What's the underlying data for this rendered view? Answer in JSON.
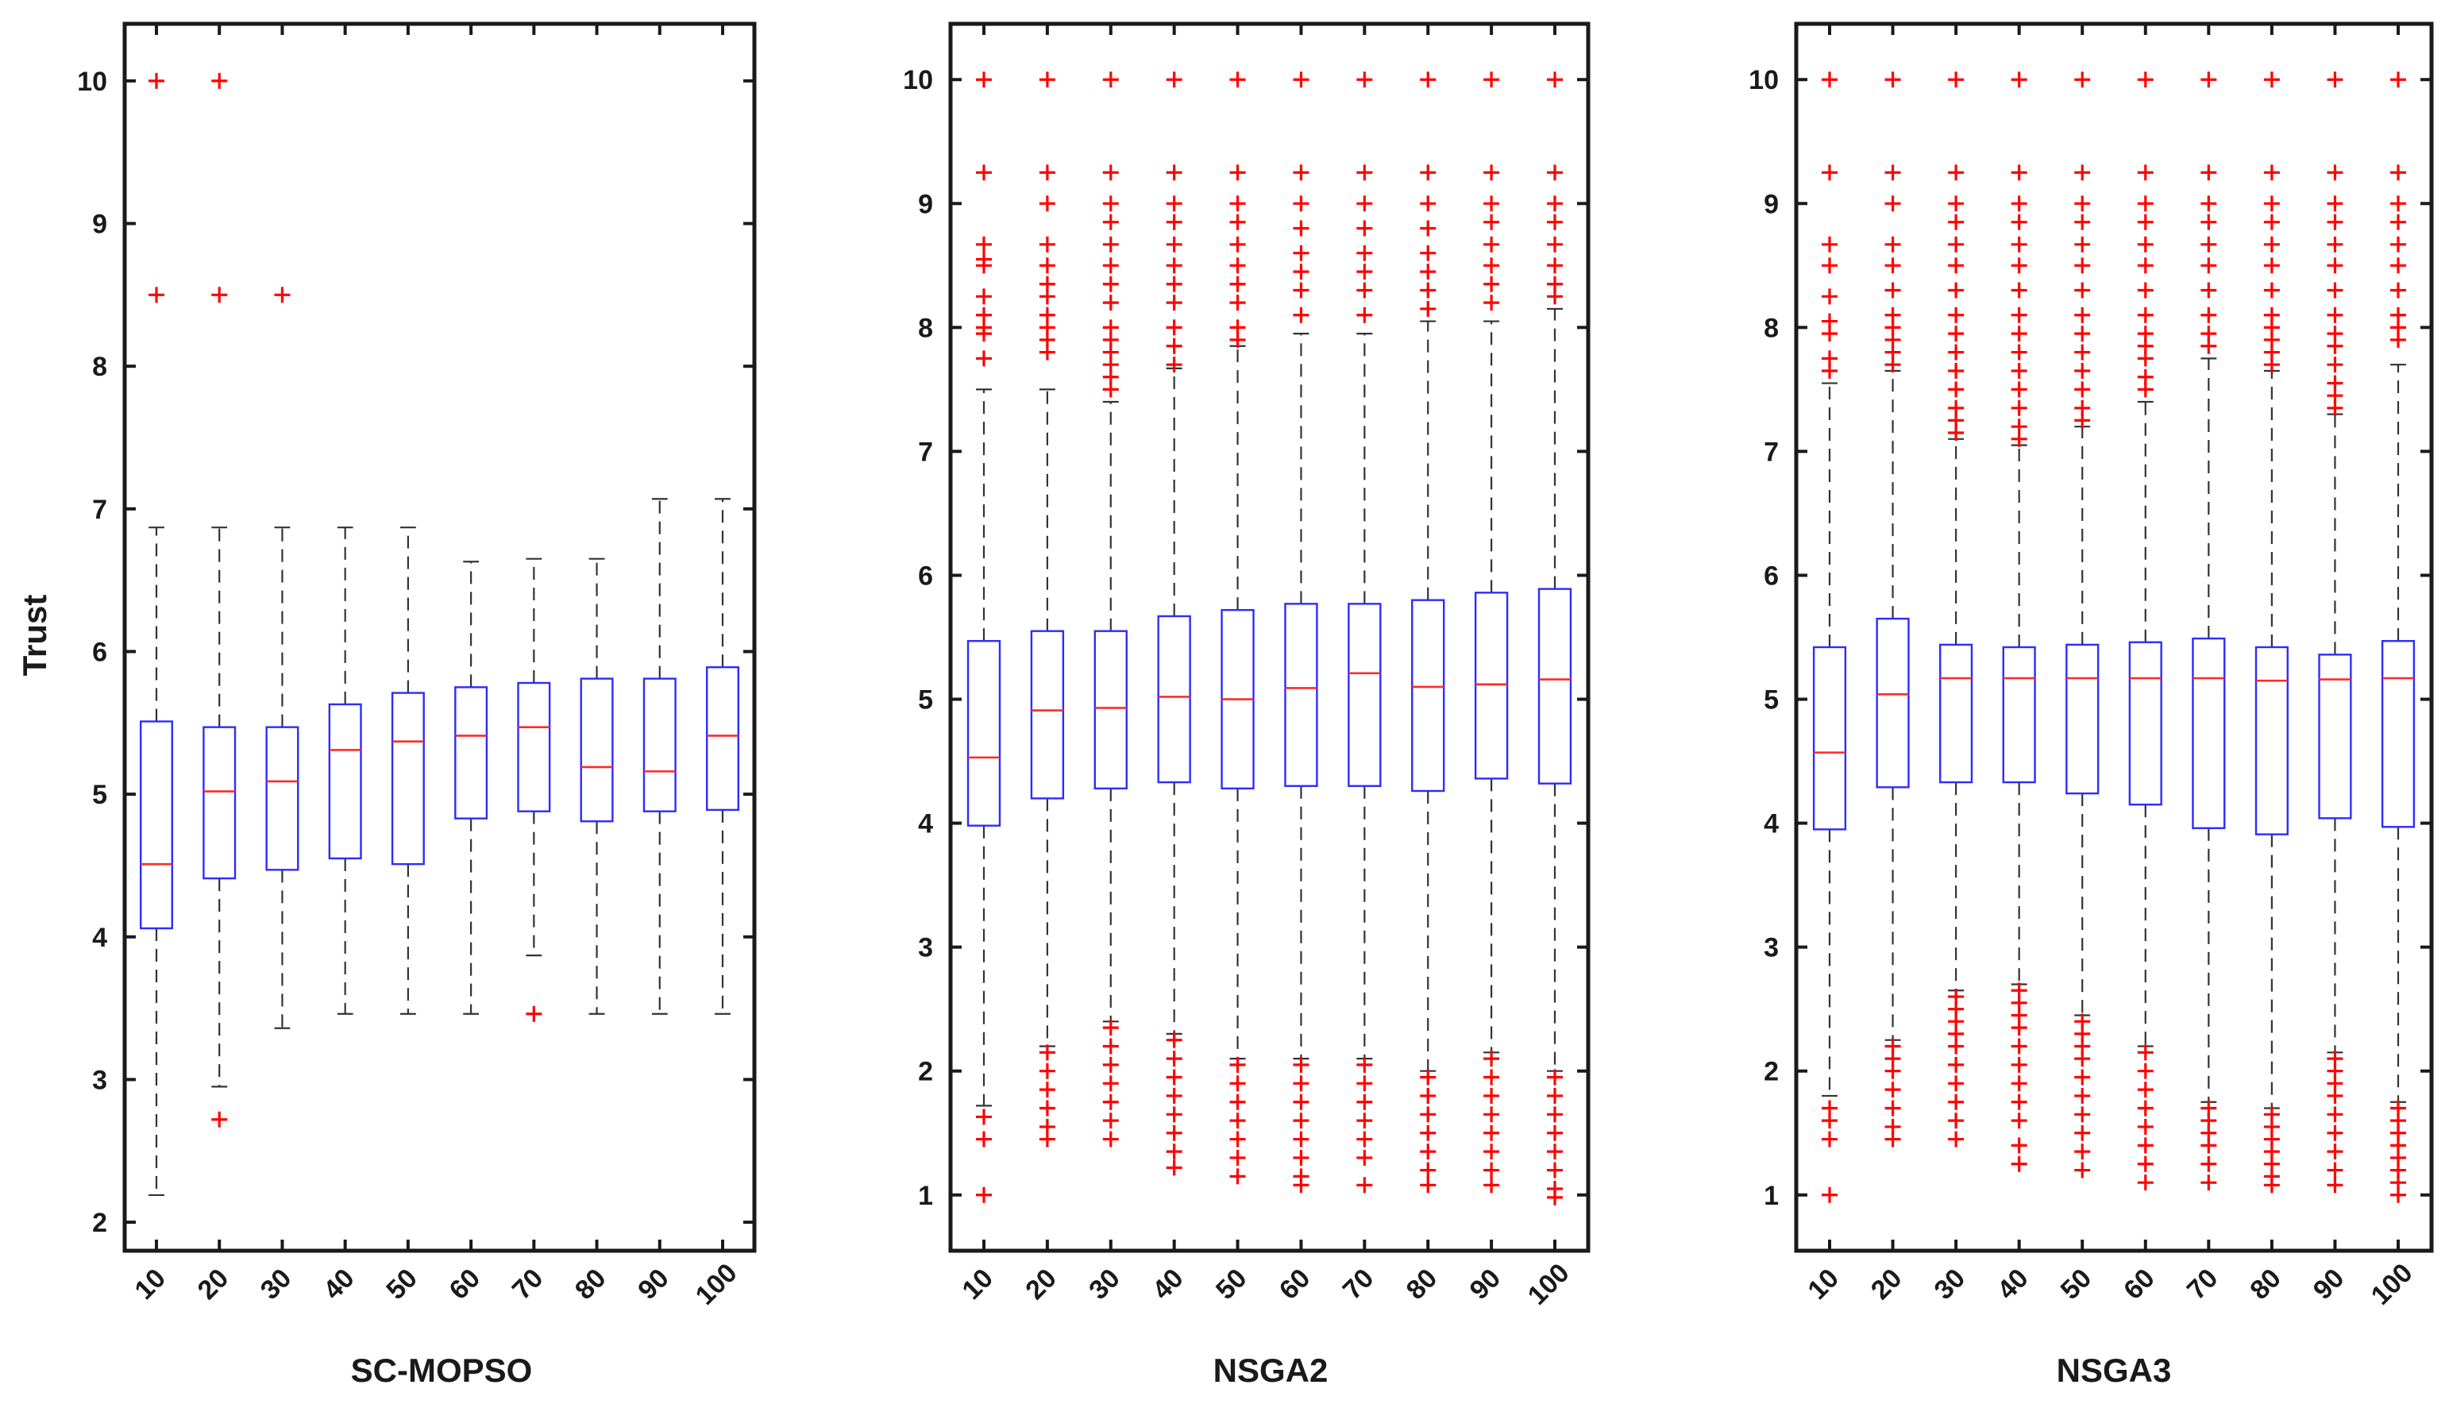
{
  "chart_data": [
    {
      "type": "boxplot",
      "title": "",
      "xlabel": "SC-MOPSO",
      "ylabel": "Trust",
      "categories": [
        "10",
        "20",
        "30",
        "40",
        "50",
        "60",
        "70",
        "80",
        "90",
        "100"
      ],
      "ylim": [
        1.8,
        10.4
      ],
      "yticks": [
        2,
        3,
        4,
        5,
        6,
        7,
        8,
        9,
        10
      ],
      "boxes": [
        {
          "q1": 4.06,
          "median": 4.51,
          "q3": 5.51,
          "whisker_low": 2.19,
          "whisker_high": 6.87,
          "outliers": [
            10,
            8.5
          ]
        },
        {
          "q1": 4.41,
          "median": 5.02,
          "q3": 5.47,
          "whisker_low": 2.95,
          "whisker_high": 6.87,
          "outliers": [
            10,
            8.5,
            2.72
          ]
        },
        {
          "q1": 4.47,
          "median": 5.09,
          "q3": 5.47,
          "whisker_low": 3.36,
          "whisker_high": 6.87,
          "outliers": [
            8.5
          ]
        },
        {
          "q1": 4.55,
          "median": 5.31,
          "q3": 5.63,
          "whisker_low": 3.46,
          "whisker_high": 6.87,
          "outliers": []
        },
        {
          "q1": 4.51,
          "median": 5.37,
          "q3": 5.71,
          "whisker_low": 3.46,
          "whisker_high": 6.87,
          "outliers": []
        },
        {
          "q1": 4.83,
          "median": 5.41,
          "q3": 5.75,
          "whisker_low": 3.46,
          "whisker_high": 6.63,
          "outliers": []
        },
        {
          "q1": 4.88,
          "median": 5.47,
          "q3": 5.78,
          "whisker_low": 3.87,
          "whisker_high": 6.65,
          "outliers": [
            3.46
          ]
        },
        {
          "q1": 4.81,
          "median": 5.19,
          "q3": 5.81,
          "whisker_low": 3.46,
          "whisker_high": 6.65,
          "outliers": []
        },
        {
          "q1": 4.88,
          "median": 5.16,
          "q3": 5.81,
          "whisker_low": 3.46,
          "whisker_high": 7.07,
          "outliers": []
        },
        {
          "q1": 4.89,
          "median": 5.41,
          "q3": 5.89,
          "whisker_low": 3.46,
          "whisker_high": 7.07,
          "outliers": []
        }
      ]
    },
    {
      "type": "boxplot",
      "title": "",
      "xlabel": "NSGA2",
      "ylabel": "",
      "categories": [
        "10",
        "20",
        "30",
        "40",
        "50",
        "60",
        "70",
        "80",
        "90",
        "100"
      ],
      "ylim": [
        0.55,
        10.45
      ],
      "yticks": [
        1,
        2,
        3,
        4,
        5,
        6,
        7,
        8,
        9,
        10
      ],
      "boxes": [
        {
          "q1": 3.98,
          "median": 4.53,
          "q3": 5.47,
          "whisker_low": 1.72,
          "whisker_high": 7.5,
          "outliers": [
            10,
            9.25,
            8.67,
            8.55,
            8.5,
            8.25,
            8.1,
            8.0,
            7.95,
            7.75,
            1.63,
            1.45,
            1.0
          ]
        },
        {
          "q1": 4.2,
          "median": 4.91,
          "q3": 5.55,
          "whisker_low": 2.2,
          "whisker_high": 7.5,
          "outliers": [
            10,
            9.25,
            9.0,
            8.67,
            8.5,
            8.35,
            8.25,
            8.1,
            8.0,
            7.9,
            7.8,
            2.15,
            2.0,
            1.85,
            1.7,
            1.55,
            1.45
          ]
        },
        {
          "q1": 4.28,
          "median": 4.93,
          "q3": 5.55,
          "whisker_low": 2.4,
          "whisker_high": 7.4,
          "outliers": [
            10,
            9.25,
            9.0,
            8.85,
            8.67,
            8.5,
            8.35,
            8.2,
            8.0,
            7.9,
            7.8,
            7.7,
            7.6,
            7.5,
            2.35,
            2.2,
            2.05,
            1.9,
            1.75,
            1.6,
            1.45
          ]
        },
        {
          "q1": 4.33,
          "median": 5.02,
          "q3": 5.67,
          "whisker_low": 2.3,
          "whisker_high": 7.67,
          "outliers": [
            10,
            9.25,
            9.0,
            8.85,
            8.67,
            8.5,
            8.35,
            8.2,
            8.0,
            7.85,
            7.7,
            2.25,
            2.1,
            1.95,
            1.8,
            1.65,
            1.5,
            1.35,
            1.22
          ]
        },
        {
          "q1": 4.28,
          "median": 5.0,
          "q3": 5.72,
          "whisker_low": 2.1,
          "whisker_high": 7.85,
          "outliers": [
            10,
            9.25,
            9.0,
            8.85,
            8.67,
            8.5,
            8.35,
            8.2,
            8.0,
            7.9,
            2.05,
            1.9,
            1.75,
            1.6,
            1.45,
            1.3,
            1.15
          ]
        },
        {
          "q1": 4.3,
          "median": 5.09,
          "q3": 5.77,
          "whisker_low": 2.1,
          "whisker_high": 7.95,
          "outliers": [
            10,
            9.25,
            9.0,
            8.8,
            8.6,
            8.45,
            8.3,
            8.1,
            2.05,
            1.9,
            1.75,
            1.6,
            1.45,
            1.3,
            1.15,
            1.08
          ]
        },
        {
          "q1": 4.3,
          "median": 5.21,
          "q3": 5.77,
          "whisker_low": 2.1,
          "whisker_high": 7.95,
          "outliers": [
            10,
            9.25,
            9.0,
            8.8,
            8.6,
            8.45,
            8.3,
            8.1,
            2.05,
            1.9,
            1.75,
            1.6,
            1.45,
            1.3,
            1.08
          ]
        },
        {
          "q1": 4.26,
          "median": 5.1,
          "q3": 5.8,
          "whisker_low": 2.0,
          "whisker_high": 8.05,
          "outliers": [
            10,
            9.25,
            9.0,
            8.8,
            8.6,
            8.45,
            8.3,
            8.15,
            1.95,
            1.8,
            1.65,
            1.5,
            1.35,
            1.2,
            1.08
          ]
        },
        {
          "q1": 4.36,
          "median": 5.12,
          "q3": 5.86,
          "whisker_low": 2.15,
          "whisker_high": 8.05,
          "outliers": [
            10,
            9.25,
            9.0,
            8.85,
            8.67,
            8.5,
            8.35,
            8.2,
            2.1,
            1.95,
            1.8,
            1.65,
            1.5,
            1.35,
            1.2,
            1.08
          ]
        },
        {
          "q1": 4.32,
          "median": 5.16,
          "q3": 5.89,
          "whisker_low": 2.0,
          "whisker_high": 8.15,
          "outliers": [
            10,
            9.25,
            9.0,
            8.85,
            8.67,
            8.5,
            8.35,
            8.25,
            1.95,
            1.8,
            1.65,
            1.5,
            1.35,
            1.2,
            1.05,
            0.98
          ]
        }
      ]
    },
    {
      "type": "boxplot",
      "title": "",
      "xlabel": "NSGA3",
      "ylabel": "",
      "categories": [
        "10",
        "20",
        "30",
        "40",
        "50",
        "60",
        "70",
        "80",
        "90",
        "100"
      ],
      "ylim": [
        0.55,
        10.45
      ],
      "yticks": [
        1,
        2,
        3,
        4,
        5,
        6,
        7,
        8,
        9,
        10
      ],
      "boxes": [
        {
          "q1": 3.95,
          "median": 4.57,
          "q3": 5.42,
          "whisker_low": 1.8,
          "whisker_high": 7.55,
          "outliers": [
            10,
            9.25,
            8.67,
            8.5,
            8.25,
            8.05,
            7.95,
            7.75,
            7.65,
            1.7,
            1.6,
            1.45,
            1.0
          ]
        },
        {
          "q1": 4.29,
          "median": 5.04,
          "q3": 5.65,
          "whisker_low": 2.25,
          "whisker_high": 7.65,
          "outliers": [
            10,
            9.25,
            9.0,
            8.67,
            8.5,
            8.3,
            8.1,
            8.0,
            7.9,
            7.8,
            7.7,
            2.2,
            2.1,
            2.0,
            1.85,
            1.7,
            1.55,
            1.45
          ]
        },
        {
          "q1": 4.33,
          "median": 5.17,
          "q3": 5.44,
          "whisker_low": 2.65,
          "whisker_high": 7.1,
          "outliers": [
            10,
            9.25,
            9.0,
            8.85,
            8.67,
            8.5,
            8.3,
            8.1,
            7.95,
            7.8,
            7.65,
            7.5,
            7.35,
            7.25,
            7.15,
            2.6,
            2.5,
            2.4,
            2.3,
            2.2,
            2.05,
            1.9,
            1.75,
            1.6,
            1.45
          ]
        },
        {
          "q1": 4.33,
          "median": 5.17,
          "q3": 5.42,
          "whisker_low": 2.7,
          "whisker_high": 7.05,
          "outliers": [
            10,
            9.25,
            9.0,
            8.85,
            8.67,
            8.5,
            8.3,
            8.1,
            7.95,
            7.8,
            7.65,
            7.5,
            7.35,
            7.2,
            7.1,
            2.65,
            2.55,
            2.45,
            2.35,
            2.2,
            2.05,
            1.9,
            1.75,
            1.6,
            1.4,
            1.25
          ]
        },
        {
          "q1": 4.24,
          "median": 5.17,
          "q3": 5.44,
          "whisker_low": 2.45,
          "whisker_high": 7.2,
          "outliers": [
            10,
            9.25,
            9.0,
            8.85,
            8.67,
            8.5,
            8.3,
            8.1,
            7.95,
            7.8,
            7.65,
            7.5,
            7.35,
            7.25,
            2.4,
            2.3,
            2.2,
            2.1,
            1.95,
            1.8,
            1.65,
            1.5,
            1.35,
            1.2
          ]
        },
        {
          "q1": 4.15,
          "median": 5.17,
          "q3": 5.46,
          "whisker_low": 2.2,
          "whisker_high": 7.4,
          "outliers": [
            10,
            9.25,
            9.0,
            8.85,
            8.67,
            8.5,
            8.3,
            8.1,
            7.95,
            7.85,
            7.75,
            7.6,
            7.5,
            2.15,
            2.0,
            1.85,
            1.7,
            1.55,
            1.4,
            1.25,
            1.1
          ]
        },
        {
          "q1": 3.96,
          "median": 5.17,
          "q3": 5.49,
          "whisker_low": 1.75,
          "whisker_high": 7.75,
          "outliers": [
            10,
            9.25,
            9.0,
            8.85,
            8.67,
            8.5,
            8.3,
            8.1,
            7.95,
            7.85,
            1.7,
            1.6,
            1.5,
            1.4,
            1.25,
            1.1
          ]
        },
        {
          "q1": 3.91,
          "median": 5.15,
          "q3": 5.42,
          "whisker_low": 1.7,
          "whisker_high": 7.65,
          "outliers": [
            10,
            9.25,
            9.0,
            8.85,
            8.67,
            8.5,
            8.3,
            8.1,
            8.0,
            7.9,
            7.8,
            7.7,
            1.65,
            1.55,
            1.45,
            1.35,
            1.25,
            1.15,
            1.08
          ]
        },
        {
          "q1": 4.04,
          "median": 5.16,
          "q3": 5.36,
          "whisker_low": 2.15,
          "whisker_high": 7.3,
          "outliers": [
            10,
            9.25,
            9.0,
            8.85,
            8.67,
            8.5,
            8.3,
            8.1,
            7.95,
            7.85,
            7.7,
            7.55,
            7.45,
            7.35,
            2.1,
            2.0,
            1.9,
            1.8,
            1.65,
            1.5,
            1.35,
            1.2,
            1.08
          ]
        },
        {
          "q1": 3.97,
          "median": 5.17,
          "q3": 5.47,
          "whisker_low": 1.75,
          "whisker_high": 7.7,
          "outliers": [
            10,
            9.25,
            9.0,
            8.85,
            8.67,
            8.5,
            8.3,
            8.1,
            8.0,
            7.9,
            1.7,
            1.6,
            1.5,
            1.4,
            1.3,
            1.2,
            1.1,
            1.0
          ]
        }
      ]
    }
  ],
  "colors": {
    "box": "#2c2cff",
    "median": "#ff2a2a",
    "outlier": "#ff0000",
    "whisker": "#333333",
    "axis": "#1a1a1a"
  }
}
